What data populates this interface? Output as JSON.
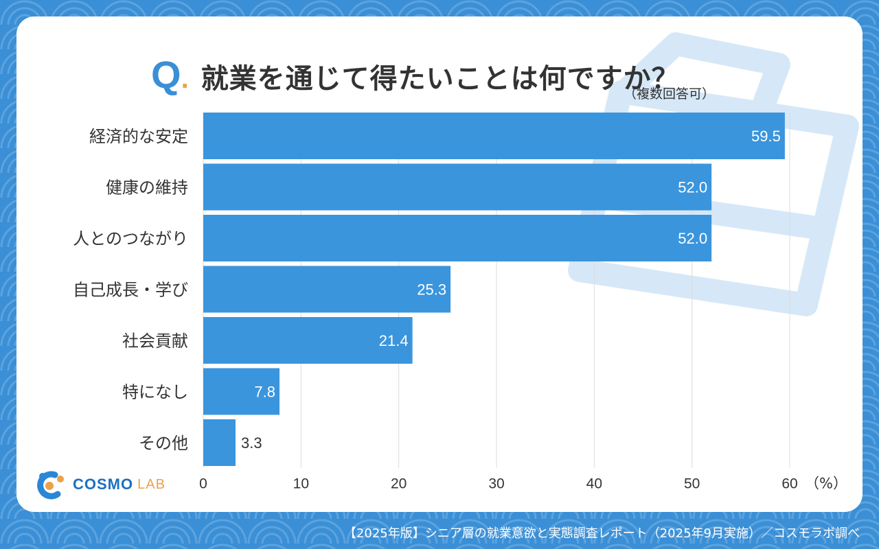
{
  "title": {
    "q_mark": "Q",
    "q_dot": ".",
    "question": "就業を通じて得たいことは何ですか？",
    "note": "（複数回答可）"
  },
  "chart_data": {
    "type": "bar",
    "orientation": "horizontal",
    "categories": [
      "経済的な安定",
      "健康の維持",
      "人とのつながり",
      "自己成長・学び",
      "社会貢献",
      "特になし",
      "その他"
    ],
    "values": [
      59.5,
      52.0,
      52.0,
      25.3,
      21.4,
      7.8,
      3.3
    ],
    "value_labels": [
      "59.5",
      "52.0",
      "52.0",
      "25.3",
      "21.4",
      "7.8",
      "3.3"
    ],
    "xticks": [
      "0",
      "10",
      "20",
      "30",
      "40",
      "50",
      "60"
    ],
    "xlim": [
      0,
      60
    ],
    "unit_label": "（%）",
    "grid": true,
    "bar_color": "#3a95dd"
  },
  "logo": {
    "main": "COSMO",
    "sub": "LAB"
  },
  "footer": "【2025年版】シニア層の就業意欲と実態調査レポート（2025年9月実施）／コスモラボ調べ",
  "colors": {
    "background": "#3a8fd6",
    "accent": "#e9a24c",
    "text": "#333333"
  }
}
